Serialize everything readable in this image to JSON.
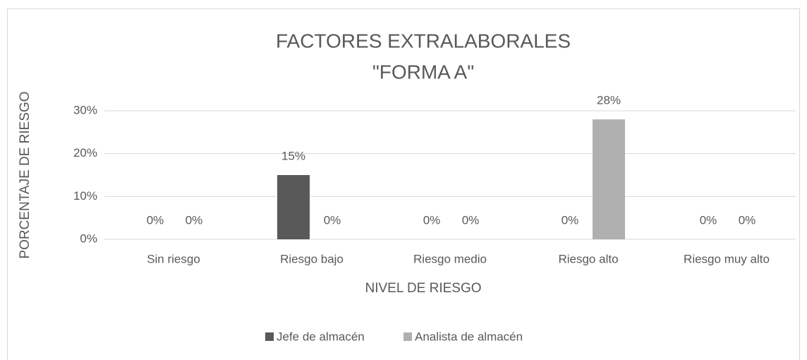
{
  "chart_data": {
    "type": "bar",
    "title": [
      "FACTORES EXTRALABORALES",
      "\"FORMA A\""
    ],
    "x_label": "NIVEL DE RIESGO",
    "y_label": "PORCENTAJE DE RIESGO",
    "categories": [
      "Sin riesgo",
      "Riesgo bajo",
      "Riesgo medio",
      "Riesgo alto",
      "Riesgo muy alto"
    ],
    "series": [
      {
        "name": "Jefe de almacén",
        "color": "#595959",
        "values": [
          0,
          15,
          0,
          0,
          0
        ],
        "value_labels": [
          "0%",
          "15%",
          "0%",
          "0%",
          "0%"
        ]
      },
      {
        "name": "Analista de almacén",
        "color": "#b0b0b0",
        "values": [
          0,
          0,
          0,
          28,
          0
        ],
        "value_labels": [
          "0%",
          "0%",
          "0%",
          "28%",
          "0%"
        ]
      }
    ],
    "ylim": [
      0,
      30
    ],
    "yticks": [
      {
        "value": 0,
        "label": "0%"
      },
      {
        "value": 10,
        "label": "10%"
      },
      {
        "value": 20,
        "label": "20%"
      },
      {
        "value": 30,
        "label": "30%"
      }
    ],
    "grid": true,
    "legend": "bottom"
  }
}
